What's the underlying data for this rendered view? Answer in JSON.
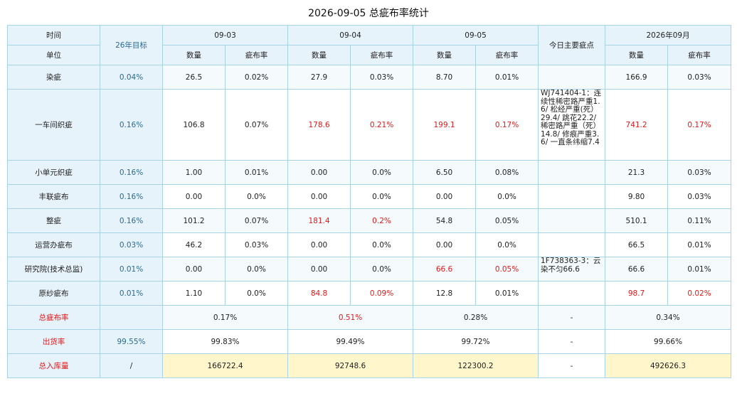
{
  "title": "2026-09-05 总疵布率统计",
  "header": {
    "time_label": "时间",
    "unit_label": "单位",
    "target_label": "26年目标",
    "dates": [
      "09-03",
      "09-04",
      "09-05"
    ],
    "notes_label": "今日主要疵点",
    "month_label": "2026年09月",
    "qty_label": "数量",
    "rate_label": "疵布率"
  },
  "rows": [
    {
      "name": "染疵",
      "target": "0.04%",
      "d1q": "26.5",
      "d1r": "0.02%",
      "d2q": "27.9",
      "d2r": "0.03%",
      "d3q": "8.70",
      "d3r": "0.01%",
      "note": "",
      "mq": "166.9",
      "mr": "0.03%"
    },
    {
      "name": "一车间织疵",
      "target": "0.16%",
      "d1q": "106.8",
      "d1r": "0.07%",
      "d2q": "178.6",
      "d2r": "0.21%",
      "d3q": "199.1",
      "d3r": "0.17%",
      "note": "WJ741404-1：连续性稀密路严重1.6/ 松经严重(死）29.4/ 跳花22.2/ 稀密路严重（死）14.8/ 修痕严重3.6/ 一直条纬缩7.4",
      "mq": "741.2",
      "mr": "0.17%"
    },
    {
      "name": "小单元织疵",
      "target": "0.16%",
      "d1q": "1.00",
      "d1r": "0.01%",
      "d2q": "0.00",
      "d2r": "0.0%",
      "d3q": "6.50",
      "d3r": "0.08%",
      "note": "",
      "mq": "21.3",
      "mr": "0.03%"
    },
    {
      "name": "丰联疵布",
      "target": "0.16%",
      "d1q": "0.00",
      "d1r": "0.0%",
      "d2q": "0.00",
      "d2r": "0.0%",
      "d3q": "0.00",
      "d3r": "0.0%",
      "note": "",
      "mq": "9.80",
      "mr": "0.03%"
    },
    {
      "name": "整疵",
      "target": "0.16%",
      "d1q": "101.2",
      "d1r": "0.07%",
      "d2q": "181.4",
      "d2r": "0.2%",
      "d3q": "54.8",
      "d3r": "0.05%",
      "note": "",
      "mq": "510.1",
      "mr": "0.11%"
    },
    {
      "name": "运营办疵布",
      "target": "0.03%",
      "d1q": "46.2",
      "d1r": "0.03%",
      "d2q": "0.00",
      "d2r": "0.0%",
      "d3q": "0.00",
      "d3r": "0.0%",
      "note": "",
      "mq": "66.5",
      "mr": "0.01%"
    },
    {
      "name": "研究院(技术总监)",
      "target": "0.01%",
      "d1q": "0.00",
      "d1r": "0.0%",
      "d2q": "0.00",
      "d2r": "0.0%",
      "d3q": "66.6",
      "d3r": "0.05%",
      "note": "1F738363-3：云染不匀66.6",
      "mq": "66.6",
      "mr": "0.01%"
    },
    {
      "name": "原纱疵布",
      "target": "0.01%",
      "d1q": "1.10",
      "d1r": "0.0%",
      "d2q": "84.8",
      "d2r": "0.09%",
      "d3q": "12.8",
      "d3r": "0.01%",
      "note": "",
      "mq": "98.7",
      "mr": "0.02%"
    }
  ],
  "summary": [
    {
      "name": "总疵布率",
      "target": "",
      "d1": "0.17%",
      "d2": "0.51%",
      "d3": "0.28%",
      "note": "-",
      "m": "0.34%"
    },
    {
      "name": "出货率",
      "target": "99.55%",
      "d1": "99.83%",
      "d2": "99.49%",
      "d3": "99.72%",
      "note": "-",
      "m": "99.66%"
    },
    {
      "name": "总入库量",
      "target": "/",
      "d1": "166722.4",
      "d2": "92748.6",
      "d3": "122300.2",
      "note": "-",
      "m": "492626.3"
    }
  ],
  "colors": {
    "highlight_red": "#e01818",
    "target_blue": "#2a6a94",
    "header_bg": "#e7f3fb",
    "total_bg": "#fff6cc",
    "border": "#a9d3e6"
  }
}
